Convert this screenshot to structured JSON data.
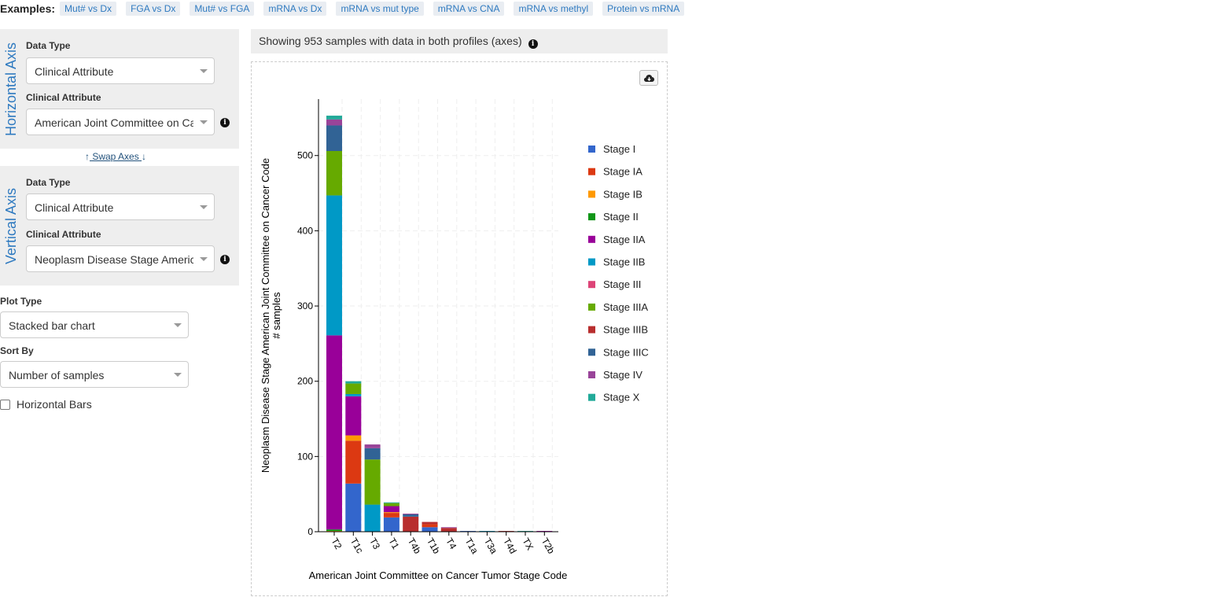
{
  "examples": {
    "label": "Examples:",
    "items": [
      "Mut# vs Dx",
      "FGA vs Dx",
      "Mut# vs FGA",
      "mRNA vs Dx",
      "mRNA vs mut type",
      "mRNA vs CNA",
      "mRNA vs methyl",
      "Protein vs mRNA"
    ]
  },
  "horizontal_axis": {
    "title": "Horizontal Axis",
    "data_type_label": "Data Type",
    "data_type_value": "Clinical Attribute",
    "attribute_label": "Clinical Attribute",
    "attribute_value": "American Joint Committee on Cancer Tumor Stage Code"
  },
  "swap_axes": {
    "label": " Swap Axes "
  },
  "vertical_axis": {
    "title": "Vertical Axis",
    "data_type_label": "Data Type",
    "data_type_value": "Clinical Attribute",
    "attribute_label": "Clinical Attribute",
    "attribute_value": "Neoplasm Disease Stage American Joint Committee on Cancer Code"
  },
  "plot_type": {
    "label": "Plot Type",
    "value": "Stacked bar chart"
  },
  "sort_by": {
    "label": "Sort By",
    "value": "Number of samples"
  },
  "horizontal_bars": {
    "label": "Horizontal Bars",
    "checked": false
  },
  "info": {
    "text": "Showing 953 samples with data in both profiles (axes)"
  },
  "icons": {
    "info": "info-circle-icon",
    "download": "cloud-download-icon",
    "swap_up": "arrow-up-icon",
    "swap_down": "arrow-down-icon"
  },
  "chart_data": {
    "type": "bar",
    "stacked": true,
    "xlabel": "American Joint Committee on Cancer Tumor Stage Code",
    "ylabel": "Neoplasm Disease Stage American Joint Committee on Cancer Code",
    "ylabel2": "# samples",
    "ylim": [
      0,
      575
    ],
    "yticks": [
      0,
      100,
      200,
      300,
      400,
      500
    ],
    "categories": [
      "T2",
      "T1c",
      "T3",
      "T1",
      "T4b",
      "T1b",
      "T4",
      "T1a",
      "T3a",
      "T4d",
      "TX",
      "T2b"
    ],
    "legend_position": "right",
    "grid": true,
    "series": [
      {
        "name": "Stage I",
        "color": "#3366cc",
        "values": [
          0,
          64,
          0,
          19,
          0,
          6,
          0,
          1,
          0,
          0,
          0,
          0
        ]
      },
      {
        "name": "Stage IA",
        "color": "#dc3912",
        "values": [
          0,
          57,
          0,
          6,
          0,
          4,
          0,
          0,
          0,
          0,
          0,
          0
        ]
      },
      {
        "name": "Stage IB",
        "color": "#ff9900",
        "values": [
          1,
          7,
          0,
          1,
          0,
          0,
          0,
          0,
          0,
          0,
          0,
          0
        ]
      },
      {
        "name": "Stage II",
        "color": "#109618",
        "values": [
          2,
          0,
          0,
          0,
          0,
          0,
          0,
          0,
          0,
          0,
          0,
          0
        ]
      },
      {
        "name": "Stage IIA",
        "color": "#990099",
        "values": [
          258,
          52,
          0,
          8,
          0,
          0,
          0,
          0,
          0,
          0,
          0,
          1
        ]
      },
      {
        "name": "Stage IIB",
        "color": "#0099c6",
        "values": [
          186,
          3,
          36,
          0,
          0,
          0,
          0,
          0,
          1,
          0,
          0,
          0
        ]
      },
      {
        "name": "Stage III",
        "color": "#dd4477",
        "values": [
          0,
          0,
          0,
          0,
          0,
          0,
          0,
          0,
          0,
          0,
          0,
          0
        ]
      },
      {
        "name": "Stage IIIA",
        "color": "#66aa00",
        "values": [
          59,
          14,
          60,
          4,
          0,
          0,
          0,
          0,
          0,
          0,
          0,
          0
        ]
      },
      {
        "name": "Stage IIIB",
        "color": "#b82e2e",
        "values": [
          0,
          0,
          0,
          0,
          20,
          3,
          5,
          0,
          0,
          1,
          0,
          0
        ]
      },
      {
        "name": "Stage IIIC",
        "color": "#316395",
        "values": [
          34,
          0,
          15,
          0,
          3,
          0,
          0,
          0,
          0,
          0,
          0,
          0
        ]
      },
      {
        "name": "Stage IV",
        "color": "#994499",
        "values": [
          8,
          0,
          5,
          0,
          1,
          0,
          1,
          0,
          0,
          0,
          0,
          0
        ]
      },
      {
        "name": "Stage X",
        "color": "#22aa99",
        "values": [
          5,
          3,
          0,
          1,
          0,
          0,
          0,
          0,
          0,
          0,
          1,
          0
        ]
      }
    ]
  }
}
